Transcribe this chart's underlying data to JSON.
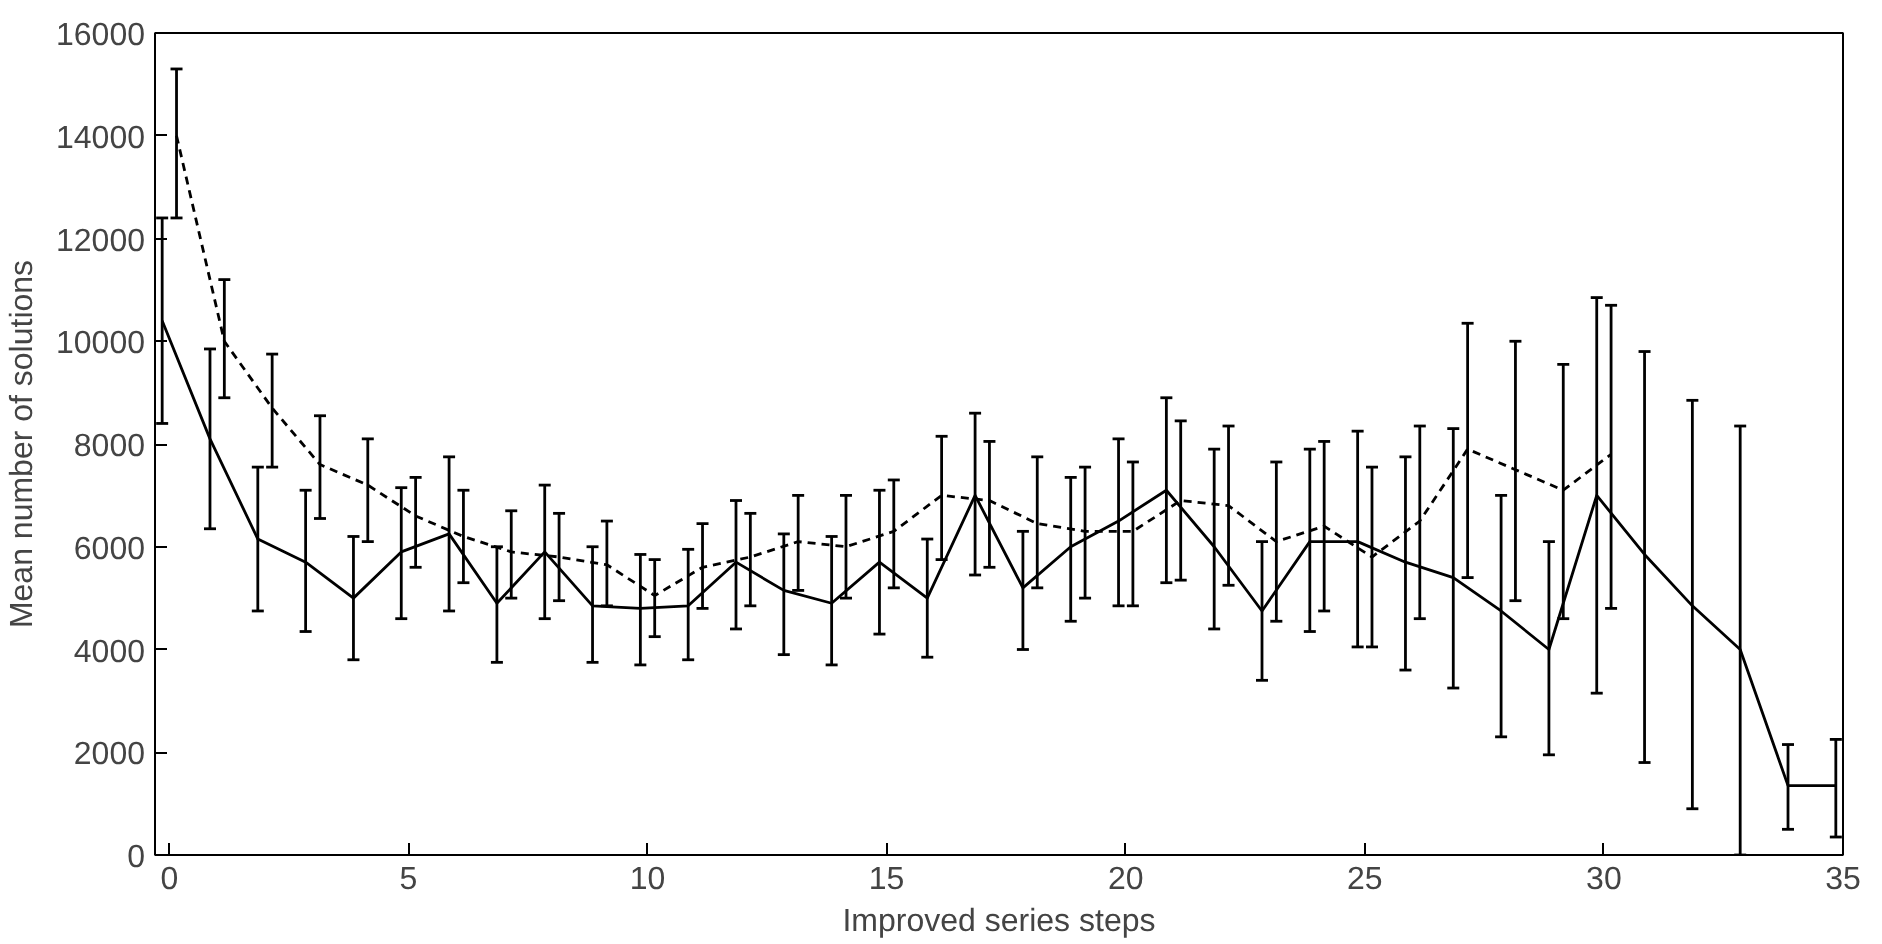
{
  "chart_data": {
    "type": "line",
    "xlabel": "Improved series steps",
    "ylabel": "Mean number of solutions",
    "xlim": [
      -0.3,
      35
    ],
    "ylim": [
      0,
      16000
    ],
    "xticks": [
      0,
      5,
      10,
      15,
      20,
      25,
      30,
      35
    ],
    "yticks": [
      0,
      2000,
      4000,
      6000,
      8000,
      10000,
      12000,
      14000,
      16000
    ],
    "series": [
      {
        "color": "#000000",
        "line_style": "solid",
        "x": [
          -0.15,
          0.85,
          1.85,
          2.85,
          3.85,
          4.85,
          5.85,
          6.85,
          7.85,
          8.85,
          9.85,
          10.85,
          11.85,
          12.85,
          13.85,
          14.85,
          15.85,
          16.85,
          17.85,
          18.85,
          19.85,
          20.85,
          21.85,
          22.85,
          23.85,
          24.85,
          25.85,
          26.85,
          27.85,
          28.85,
          29.85,
          30.85,
          31.85,
          32.85,
          33.85,
          34.85
        ],
        "values": [
          10400,
          8100,
          6150,
          5700,
          5000,
          5900,
          6250,
          4900,
          5900,
          4850,
          4800,
          4850,
          5700,
          5150,
          4900,
          5700,
          5000,
          7000,
          5200,
          6000,
          6500,
          7100,
          6000,
          4750,
          6100,
          6100,
          5700,
          5400,
          4750,
          4000,
          7000,
          5850,
          4850,
          4000,
          1350,
          1350
        ],
        "errors": [
          [
            8400,
            12400
          ],
          [
            6350,
            9850
          ],
          [
            4750,
            7550
          ],
          [
            4350,
            7100
          ],
          [
            3800,
            6200
          ],
          [
            4600,
            7150
          ],
          [
            4750,
            7750
          ],
          [
            3750,
            6000
          ],
          [
            4600,
            7200
          ],
          [
            3750,
            6000
          ],
          [
            3700,
            5850
          ],
          [
            3800,
            5950
          ],
          [
            4400,
            6900
          ],
          [
            3900,
            6250
          ],
          [
            3700,
            6200
          ],
          [
            4300,
            7100
          ],
          [
            3850,
            6150
          ],
          [
            5450,
            8600
          ],
          [
            4000,
            6300
          ],
          [
            4550,
            7350
          ],
          [
            4850,
            8100
          ],
          [
            5300,
            8900
          ],
          [
            4400,
            7900
          ],
          [
            3400,
            6100
          ],
          [
            4350,
            7900
          ],
          [
            4050,
            8250
          ],
          [
            3600,
            7750
          ],
          [
            3250,
            8300
          ],
          [
            2300,
            7000
          ],
          [
            1950,
            6100
          ],
          [
            3150,
            10850
          ],
          [
            1800,
            9800
          ],
          [
            900,
            8850
          ],
          [
            0,
            8350
          ],
          [
            500,
            2150
          ],
          [
            350,
            2250
          ]
        ]
      },
      {
        "color": "#000000",
        "line_style": "dashed",
        "x": [
          0.15,
          1.15,
          2.15,
          3.15,
          4.15,
          5.15,
          6.15,
          7.15,
          8.15,
          9.15,
          10.15,
          11.15,
          12.15,
          13.15,
          14.15,
          15.15,
          16.15,
          17.15,
          18.15,
          19.15,
          20.15,
          21.15,
          22.15,
          23.15,
          24.15,
          25.15,
          26.15,
          27.15,
          28.15,
          29.15,
          30.15
        ],
        "values": [
          14000,
          10000,
          8700,
          7600,
          7200,
          6600,
          6200,
          5900,
          5800,
          5650,
          5050,
          5600,
          5800,
          6100,
          6000,
          6300,
          7000,
          6900,
          6450,
          6300,
          6300,
          6900,
          6800,
          6100,
          6400,
          5800,
          6500,
          7900,
          7500,
          7100,
          7800
        ],
        "errors": [
          [
            12400,
            15300
          ],
          [
            8900,
            11200
          ],
          [
            7550,
            9750
          ],
          [
            6550,
            8550
          ],
          [
            6100,
            8100
          ],
          [
            5600,
            7350
          ],
          [
            5300,
            7100
          ],
          [
            5000,
            6700
          ],
          [
            4950,
            6650
          ],
          [
            4850,
            6500
          ],
          [
            4250,
            5750
          ],
          [
            4800,
            6450
          ],
          [
            4850,
            6650
          ],
          [
            5150,
            7000
          ],
          [
            5000,
            7000
          ],
          [
            5200,
            7300
          ],
          [
            5750,
            8150
          ],
          [
            5600,
            8050
          ],
          [
            5200,
            7750
          ],
          [
            5000,
            7550
          ],
          [
            4850,
            7650
          ],
          [
            5350,
            8450
          ],
          [
            5250,
            8350
          ],
          [
            4550,
            7650
          ],
          [
            4750,
            8050
          ],
          [
            4050,
            7550
          ],
          [
            4600,
            8350
          ],
          [
            5400,
            10350
          ],
          [
            4950,
            10000
          ],
          [
            4600,
            9550
          ],
          [
            4800,
            10700
          ]
        ]
      }
    ]
  }
}
